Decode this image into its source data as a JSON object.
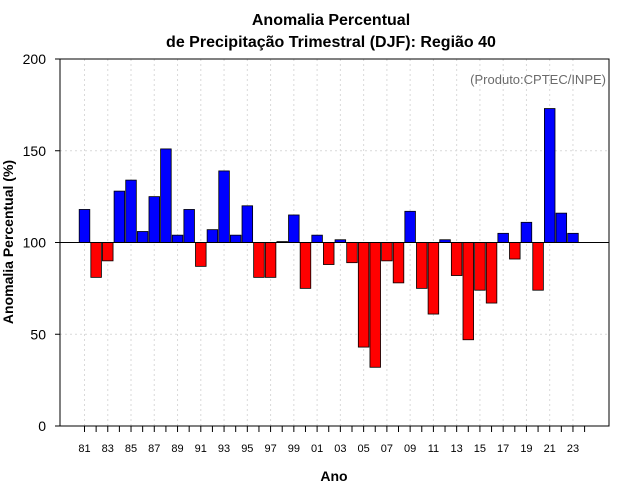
{
  "chart_data": {
    "type": "bar",
    "title": "Anomalia Percentual",
    "subtitle": "de Precipitação Trimestral (DJF): Região 40",
    "xlabel": "Ano",
    "ylabel": "Anomalia Percentual (%)",
    "credit": "(Produto:CPTEC/INPE)",
    "baseline": 100,
    "ylim": [
      0,
      200
    ],
    "yticks": [
      0,
      50,
      100,
      150,
      200
    ],
    "grid": true,
    "colors": {
      "above": "#0000ff",
      "below": "#ff0000",
      "gridline": "#d9d9d9",
      "axis": "#000000",
      "credit": "#6b6b6b"
    },
    "categories": [
      "81",
      "82",
      "83",
      "84",
      "85",
      "86",
      "87",
      "88",
      "89",
      "90",
      "91",
      "92",
      "93",
      "94",
      "95",
      "96",
      "97",
      "98",
      "99",
      "00",
      "01",
      "02",
      "03",
      "04",
      "05",
      "06",
      "07",
      "08",
      "09",
      "10",
      "11",
      "12",
      "13",
      "14",
      "15",
      "16",
      "17",
      "18",
      "19",
      "20",
      "21",
      "22",
      "23",
      "24"
    ],
    "xtick_labels": [
      "81",
      "83",
      "85",
      "87",
      "89",
      "91",
      "93",
      "95",
      "97",
      "99",
      "01",
      "03",
      "05",
      "07",
      "09",
      "11",
      "13",
      "15",
      "17",
      "19",
      "21",
      "23"
    ],
    "values": [
      118,
      81,
      90,
      128,
      134,
      106,
      125,
      151,
      104,
      118,
      87,
      107,
      139,
      104,
      120,
      81,
      81,
      100.5,
      115,
      75,
      104,
      88,
      101.5,
      89,
      43,
      32,
      90,
      78,
      117,
      75,
      61,
      101.5,
      82,
      47,
      74,
      67,
      105,
      91,
      111,
      74,
      173,
      116,
      105,
      null
    ]
  }
}
